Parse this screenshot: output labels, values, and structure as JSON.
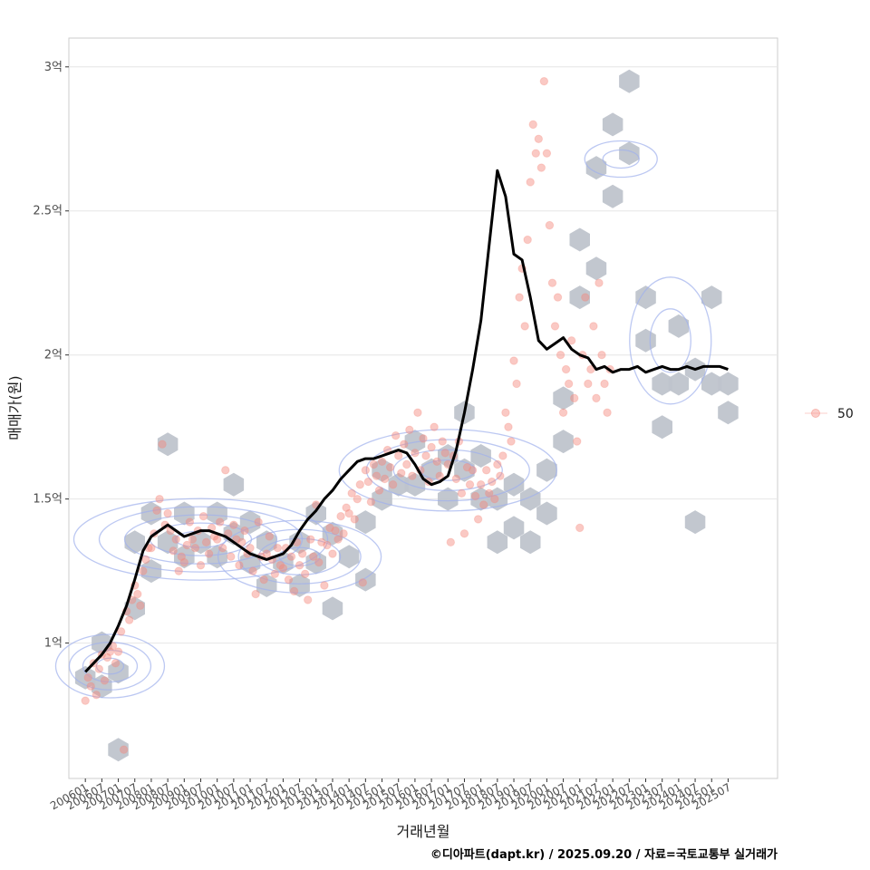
{
  "chart_data": {
    "type": "scatter",
    "title": "",
    "xlabel": "거래년월",
    "ylabel": "매매가(원)",
    "caption": "©디아파트(dapt.kr) / 2025.09.20 / 자료=국토교통부 실거래가",
    "legend": {
      "position": "right",
      "entries": [
        {
          "label": "50",
          "color": "#f4877c"
        }
      ]
    },
    "x_ticks": [
      "200601",
      "200607",
      "200701",
      "200707",
      "200801",
      "200807",
      "200901",
      "200907",
      "201001",
      "201007",
      "201101",
      "201107",
      "201201",
      "201207",
      "201301",
      "201307",
      "201401",
      "201407",
      "201501",
      "201507",
      "201601",
      "201607",
      "201701",
      "201707",
      "201801",
      "201807",
      "201901",
      "201907",
      "202001",
      "202007",
      "202101",
      "202107",
      "202201",
      "202207",
      "202301",
      "202307",
      "202401",
      "202407",
      "202501",
      "202507"
    ],
    "x_range": [
      "2005-07",
      "2027-01"
    ],
    "y_ticks": [
      {
        "value": 1.0,
        "label": "1억"
      },
      {
        "value": 1.5,
        "label": "1.5억"
      },
      {
        "value": 2.0,
        "label": "2억"
      },
      {
        "value": 2.5,
        "label": "2.5억"
      },
      {
        "value": 3.0,
        "label": "3억"
      }
    ],
    "y_unit": "억",
    "ylim": [
      0.53,
      3.1
    ],
    "grid": true,
    "hex_color": "#bfc4cc",
    "point_color": "#f4877c",
    "contour_color": "#9fb0ec",
    "trend_color": "#000000",
    "trend_line": {
      "x": [
        "2006-01",
        "2006-04",
        "2006-07",
        "2006-10",
        "2007-01",
        "2007-04",
        "2007-07",
        "2007-10",
        "2008-01",
        "2008-04",
        "2008-07",
        "2008-10",
        "2009-01",
        "2009-04",
        "2009-07",
        "2009-10",
        "2010-01",
        "2010-04",
        "2010-07",
        "2010-10",
        "2011-01",
        "2011-04",
        "2011-07",
        "2011-10",
        "2012-01",
        "2012-04",
        "2012-07",
        "2012-10",
        "2013-01",
        "2013-04",
        "2013-07",
        "2013-10",
        "2014-01",
        "2014-04",
        "2014-07",
        "2014-10",
        "2015-01",
        "2015-04",
        "2015-07",
        "2015-10",
        "2016-01",
        "2016-04",
        "2016-07",
        "2016-10",
        "2017-01",
        "2017-04",
        "2017-07",
        "2017-10",
        "2018-01",
        "2018-04",
        "2018-07",
        "2018-10",
        "2019-01",
        "2019-04",
        "2019-07",
        "2019-10",
        "2020-01",
        "2020-04",
        "2020-07",
        "2020-10",
        "2021-01",
        "2021-04",
        "2021-07",
        "2021-10",
        "2022-01",
        "2022-04",
        "2022-07",
        "2022-10",
        "2023-01",
        "2023-04",
        "2023-07",
        "2023-10",
        "2024-01",
        "2024-04",
        "2024-07",
        "2024-10",
        "2025-01",
        "2025-04",
        "2025-07"
      ],
      "y": [
        0.9,
        0.93,
        0.96,
        1.0,
        1.06,
        1.13,
        1.22,
        1.32,
        1.37,
        1.39,
        1.41,
        1.39,
        1.37,
        1.38,
        1.39,
        1.39,
        1.38,
        1.37,
        1.35,
        1.33,
        1.31,
        1.3,
        1.29,
        1.3,
        1.31,
        1.34,
        1.39,
        1.43,
        1.46,
        1.5,
        1.53,
        1.57,
        1.6,
        1.63,
        1.64,
        1.64,
        1.65,
        1.66,
        1.67,
        1.66,
        1.62,
        1.57,
        1.55,
        1.56,
        1.58,
        1.67,
        1.8,
        1.95,
        2.12,
        2.38,
        2.64,
        2.55,
        2.35,
        2.33,
        2.2,
        2.05,
        2.02,
        2.04,
        2.06,
        2.02,
        2.0,
        1.99,
        1.95,
        1.96,
        1.94,
        1.95,
        1.95,
        1.96,
        1.94,
        1.95,
        1.96,
        1.95,
        1.95,
        1.96,
        1.95,
        1.96,
        1.96,
        1.96,
        1.95
      ]
    },
    "points": [
      [
        "2006-01",
        0.8
      ],
      [
        "2006-02",
        0.88
      ],
      [
        "2006-03",
        0.85
      ],
      [
        "2006-04",
        0.93
      ],
      [
        "2006-05",
        0.82
      ],
      [
        "2006-06",
        0.91
      ],
      [
        "2006-07",
        0.96
      ],
      [
        "2006-08",
        0.87
      ],
      [
        "2006-09",
        0.95
      ],
      [
        "2006-10",
        0.97
      ],
      [
        "2006-11",
        0.99
      ],
      [
        "2006-12",
        0.93
      ],
      [
        "2007-01",
        0.97
      ],
      [
        "2007-02",
        1.04
      ],
      [
        "2007-03",
        0.63
      ],
      [
        "2007-04",
        1.11
      ],
      [
        "2007-05",
        1.08
      ],
      [
        "2007-06",
        1.15
      ],
      [
        "2007-07",
        1.2
      ],
      [
        "2007-08",
        1.17
      ],
      [
        "2007-09",
        1.13
      ],
      [
        "2007-10",
        1.25
      ],
      [
        "2007-11",
        1.29
      ],
      [
        "2007-12",
        1.33
      ],
      [
        "2008-01",
        1.33
      ],
      [
        "2008-02",
        1.38
      ],
      [
        "2008-03",
        1.46
      ],
      [
        "2008-04",
        1.5
      ],
      [
        "2008-05",
        1.69
      ],
      [
        "2008-06",
        1.41
      ],
      [
        "2008-07",
        1.45
      ],
      [
        "2008-08",
        1.39
      ],
      [
        "2008-09",
        1.32
      ],
      [
        "2008-10",
        1.36
      ],
      [
        "2008-11",
        1.25
      ],
      [
        "2008-12",
        1.3
      ],
      [
        "2009-01",
        1.28
      ],
      [
        "2009-02",
        1.34
      ],
      [
        "2009-03",
        1.42
      ],
      [
        "2009-04",
        1.36
      ],
      [
        "2009-05",
        1.33
      ],
      [
        "2009-06",
        1.39
      ],
      [
        "2009-07",
        1.27
      ],
      [
        "2009-08",
        1.44
      ],
      [
        "2009-09",
        1.35
      ],
      [
        "2009-10",
        1.31
      ],
      [
        "2009-11",
        1.4
      ],
      [
        "2009-12",
        1.37
      ],
      [
        "2010-01",
        1.36
      ],
      [
        "2010-02",
        1.42
      ],
      [
        "2010-03",
        1.33
      ],
      [
        "2010-04",
        1.6
      ],
      [
        "2010-05",
        1.38
      ],
      [
        "2010-06",
        1.3
      ],
      [
        "2010-07",
        1.41
      ],
      [
        "2010-08",
        1.36
      ],
      [
        "2010-09",
        1.27
      ],
      [
        "2010-10",
        1.35
      ],
      [
        "2010-11",
        1.39
      ],
      [
        "2010-12",
        1.31
      ],
      [
        "2011-01",
        1.33
      ],
      [
        "2011-02",
        1.25
      ],
      [
        "2011-03",
        1.17
      ],
      [
        "2011-04",
        1.42
      ],
      [
        "2011-05",
        1.3
      ],
      [
        "2011-06",
        1.22
      ],
      [
        "2011-07",
        1.31
      ],
      [
        "2011-08",
        1.37
      ],
      [
        "2011-09",
        1.29
      ],
      [
        "2011-10",
        1.24
      ],
      [
        "2011-11",
        1.33
      ],
      [
        "2011-12",
        1.27
      ],
      [
        "2012-01",
        1.26
      ],
      [
        "2012-02",
        1.33
      ],
      [
        "2012-03",
        1.22
      ],
      [
        "2012-04",
        1.3
      ],
      [
        "2012-05",
        1.18
      ],
      [
        "2012-06",
        1.35
      ],
      [
        "2012-07",
        1.27
      ],
      [
        "2012-08",
        1.31
      ],
      [
        "2012-09",
        1.24
      ],
      [
        "2012-10",
        1.15
      ],
      [
        "2012-11",
        1.36
      ],
      [
        "2012-12",
        1.3
      ],
      [
        "2013-01",
        1.48
      ],
      [
        "2013-02",
        1.28
      ],
      [
        "2013-03",
        1.35
      ],
      [
        "2013-04",
        1.2
      ],
      [
        "2013-05",
        1.34
      ],
      [
        "2013-06",
        1.4
      ],
      [
        "2013-07",
        1.31
      ],
      [
        "2013-08",
        1.39
      ],
      [
        "2013-09",
        1.36
      ],
      [
        "2013-10",
        1.44
      ],
      [
        "2013-11",
        1.38
      ],
      [
        "2013-12",
        1.47
      ],
      [
        "2014-01",
        1.45
      ],
      [
        "2014-02",
        1.52
      ],
      [
        "2014-03",
        1.43
      ],
      [
        "2014-04",
        1.5
      ],
      [
        "2014-05",
        1.55
      ],
      [
        "2014-06",
        1.21
      ],
      [
        "2014-07",
        1.6
      ],
      [
        "2014-08",
        1.56
      ],
      [
        "2014-09",
        1.49
      ],
      [
        "2014-10",
        1.62
      ],
      [
        "2014-11",
        1.58
      ],
      [
        "2014-12",
        1.53
      ],
      [
        "2015-01",
        1.63
      ],
      [
        "2015-02",
        1.57
      ],
      [
        "2015-03",
        1.67
      ],
      [
        "2015-04",
        1.61
      ],
      [
        "2015-05",
        1.55
      ],
      [
        "2015-06",
        1.72
      ],
      [
        "2015-07",
        1.65
      ],
      [
        "2015-08",
        1.59
      ],
      [
        "2015-09",
        1.69
      ],
      [
        "2015-10",
        1.62
      ],
      [
        "2015-11",
        1.74
      ],
      [
        "2015-12",
        1.58
      ],
      [
        "2016-01",
        1.66
      ],
      [
        "2016-02",
        1.8
      ],
      [
        "2016-03",
        1.6
      ],
      [
        "2016-04",
        1.71
      ],
      [
        "2016-05",
        1.65
      ],
      [
        "2016-06",
        1.56
      ],
      [
        "2016-07",
        1.68
      ],
      [
        "2016-08",
        1.75
      ],
      [
        "2016-09",
        1.63
      ],
      [
        "2016-10",
        1.58
      ],
      [
        "2016-11",
        1.7
      ],
      [
        "2016-12",
        1.66
      ],
      [
        "2017-01",
        1.62
      ],
      [
        "2017-02",
        1.35
      ],
      [
        "2017-03",
        1.65
      ],
      [
        "2017-04",
        1.57
      ],
      [
        "2017-05",
        1.7
      ],
      [
        "2017-06",
        1.52
      ],
      [
        "2017-07",
        1.38
      ],
      [
        "2017-08",
        1.61
      ],
      [
        "2017-09",
        1.55
      ],
      [
        "2017-10",
        1.6
      ],
      [
        "2017-11",
        1.51
      ],
      [
        "2017-12",
        1.43
      ],
      [
        "2018-01",
        1.55
      ],
      [
        "2018-02",
        1.48
      ],
      [
        "2018-03",
        1.6
      ],
      [
        "2018-04",
        1.52
      ],
      [
        "2018-05",
        1.56
      ],
      [
        "2018-06",
        1.5
      ],
      [
        "2018-07",
        1.62
      ],
      [
        "2018-08",
        1.58
      ],
      [
        "2018-09",
        1.65
      ],
      [
        "2018-10",
        1.8
      ],
      [
        "2018-11",
        1.75
      ],
      [
        "2018-12",
        1.7
      ],
      [
        "2019-01",
        1.98
      ],
      [
        "2019-02",
        1.9
      ],
      [
        "2019-03",
        2.2
      ],
      [
        "2019-04",
        2.3
      ],
      [
        "2019-05",
        2.1
      ],
      [
        "2019-06",
        2.4
      ],
      [
        "2019-07",
        2.6
      ],
      [
        "2019-08",
        2.8
      ],
      [
        "2019-09",
        2.7
      ],
      [
        "2019-10",
        2.75
      ],
      [
        "2019-11",
        2.65
      ],
      [
        "2019-12",
        2.95
      ],
      [
        "2020-01",
        2.7
      ],
      [
        "2020-02",
        2.45
      ],
      [
        "2020-03",
        2.25
      ],
      [
        "2020-04",
        2.1
      ],
      [
        "2020-05",
        2.2
      ],
      [
        "2020-06",
        2.0
      ],
      [
        "2020-07",
        1.8
      ],
      [
        "2020-08",
        1.95
      ],
      [
        "2020-09",
        1.9
      ],
      [
        "2020-10",
        2.05
      ],
      [
        "2020-11",
        1.85
      ],
      [
        "2020-12",
        1.7
      ],
      [
        "2021-01",
        1.4
      ],
      [
        "2021-02",
        2.0
      ],
      [
        "2021-03",
        2.2
      ],
      [
        "2021-04",
        1.9
      ],
      [
        "2021-05",
        1.95
      ],
      [
        "2021-06",
        2.1
      ],
      [
        "2021-07",
        1.85
      ],
      [
        "2021-08",
        2.25
      ],
      [
        "2021-09",
        2.0
      ],
      [
        "2021-10",
        1.9
      ],
      [
        "2021-11",
        1.8
      ],
      [
        "2021-12",
        1.95
      ]
    ],
    "hexbins": [
      [
        "2006-01",
        0.88
      ],
      [
        "2006-07",
        0.85
      ],
      [
        "2006-07",
        1.0
      ],
      [
        "2007-01",
        0.9
      ],
      [
        "2007-01",
        0.63
      ],
      [
        "2007-07",
        1.12
      ],
      [
        "2007-07",
        1.35
      ],
      [
        "2008-01",
        1.25
      ],
      [
        "2008-01",
        1.45
      ],
      [
        "2008-07",
        1.69
      ],
      [
        "2008-07",
        1.35
      ],
      [
        "2009-01",
        1.3
      ],
      [
        "2009-01",
        1.45
      ],
      [
        "2009-07",
        1.35
      ],
      [
        "2010-01",
        1.3
      ],
      [
        "2010-01",
        1.45
      ],
      [
        "2010-07",
        1.38
      ],
      [
        "2010-07",
        1.55
      ],
      [
        "2011-01",
        1.28
      ],
      [
        "2011-01",
        1.42
      ],
      [
        "2011-07",
        1.2
      ],
      [
        "2011-07",
        1.35
      ],
      [
        "2012-01",
        1.28
      ],
      [
        "2012-07",
        1.2
      ],
      [
        "2012-07",
        1.35
      ],
      [
        "2013-01",
        1.28
      ],
      [
        "2013-01",
        1.45
      ],
      [
        "2013-07",
        1.12
      ],
      [
        "2013-07",
        1.38
      ],
      [
        "2014-01",
        1.3
      ],
      [
        "2014-07",
        1.42
      ],
      [
        "2014-07",
        1.22
      ],
      [
        "2015-01",
        1.5
      ],
      [
        "2015-01",
        1.6
      ],
      [
        "2015-07",
        1.55
      ],
      [
        "2016-01",
        1.55
      ],
      [
        "2016-01",
        1.7
      ],
      [
        "2016-07",
        1.6
      ],
      [
        "2017-01",
        1.5
      ],
      [
        "2017-01",
        1.65
      ],
      [
        "2017-07",
        1.6
      ],
      [
        "2017-07",
        1.8
      ],
      [
        "2018-01",
        1.5
      ],
      [
        "2018-01",
        1.65
      ],
      [
        "2018-07",
        1.35
      ],
      [
        "2018-07",
        1.5
      ],
      [
        "2019-01",
        1.4
      ],
      [
        "2019-01",
        1.55
      ],
      [
        "2019-07",
        1.35
      ],
      [
        "2019-07",
        1.5
      ],
      [
        "2020-01",
        1.45
      ],
      [
        "2020-01",
        1.6
      ],
      [
        "2020-07",
        1.7
      ],
      [
        "2020-07",
        1.85
      ],
      [
        "2021-01",
        2.2
      ],
      [
        "2021-01",
        2.4
      ],
      [
        "2021-07",
        2.3
      ],
      [
        "2021-07",
        2.65
      ],
      [
        "2022-01",
        2.8
      ],
      [
        "2022-01",
        2.55
      ],
      [
        "2022-07",
        2.7
      ],
      [
        "2022-07",
        2.95
      ],
      [
        "2023-01",
        2.2
      ],
      [
        "2023-01",
        2.05
      ],
      [
        "2023-07",
        1.9
      ],
      [
        "2023-07",
        1.75
      ],
      [
        "2024-01",
        1.9
      ],
      [
        "2024-01",
        2.1
      ],
      [
        "2024-07",
        1.95
      ],
      [
        "2024-07",
        1.42
      ],
      [
        "2025-01",
        2.2
      ],
      [
        "2025-01",
        1.9
      ],
      [
        "2025-07",
        1.8
      ],
      [
        "2025-07",
        1.9
      ]
    ]
  }
}
